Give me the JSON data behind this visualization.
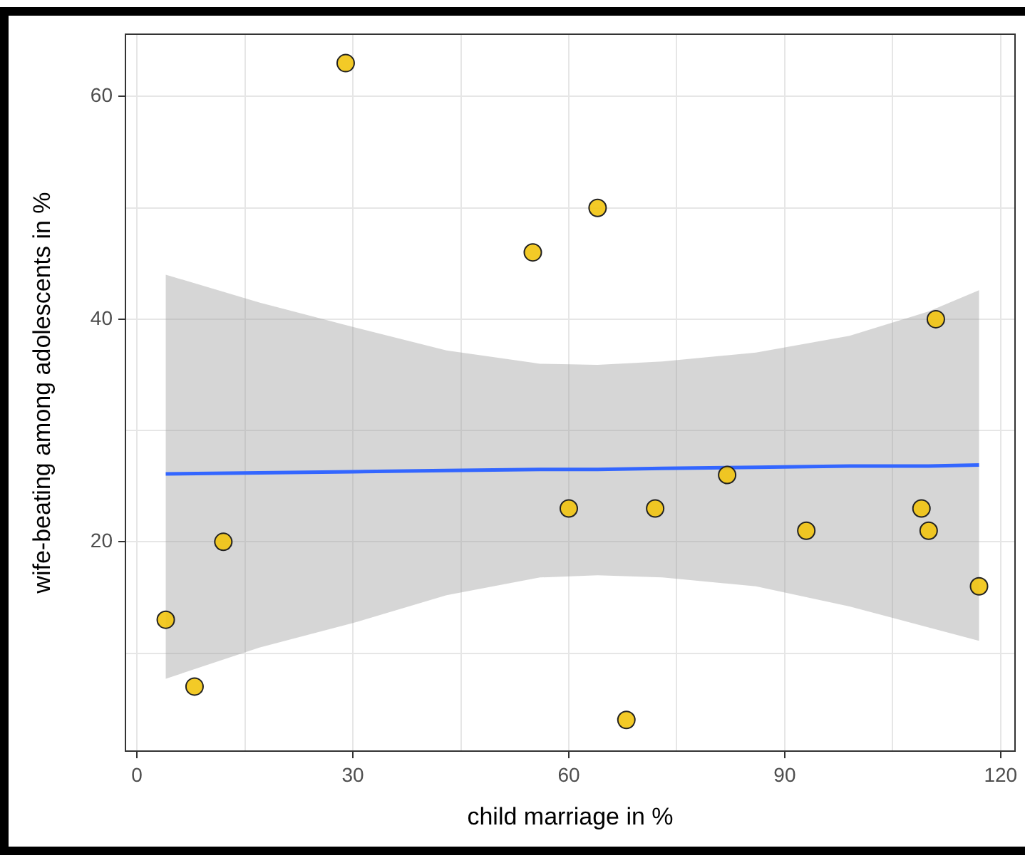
{
  "chart_data": {
    "type": "scatter",
    "xlabel": "child marriage in %",
    "ylabel": "wife-beating among adolescents in %",
    "xlim": [
      -1.6,
      122
    ],
    "ylim": [
      1.2,
      65.6
    ],
    "xticks": [
      0,
      {
        "value": 15,
        "label": null
      },
      30,
      {
        "value": 45,
        "label": null
      },
      60,
      {
        "value": 75,
        "label": null
      },
      90,
      {
        "value": 105,
        "label": null
      },
      120
    ],
    "yticks": [
      {
        "value": 10,
        "label": null
      },
      20,
      {
        "value": 30,
        "label": null
      },
      40,
      {
        "value": 50,
        "label": null
      },
      60
    ],
    "grid": true,
    "series": [
      {
        "type": "line",
        "marker": "none",
        "color": "#3366ff",
        "x": [
          4,
          17,
          30,
          43,
          56,
          64,
          73,
          86,
          99,
          110,
          117
        ],
        "values": [
          26.1,
          26.2,
          26.3,
          26.4,
          26.5,
          26.5,
          26.6,
          26.7,
          26.8,
          26.8,
          26.9
        ],
        "lower": [
          7.7,
          10.5,
          12.7,
          15.2,
          16.8,
          17,
          16.8,
          16,
          14.2,
          12.3,
          11.1
        ],
        "upper": [
          44,
          41.5,
          39.3,
          37.2,
          36,
          35.9,
          36.2,
          37,
          38.5,
          40.7,
          42.6
        ]
      },
      {
        "marker": "circle",
        "color": "#f2c40f",
        "x": [
          4,
          8,
          12,
          29,
          55,
          60,
          64,
          68,
          72,
          82,
          93,
          109,
          110,
          111,
          117
        ],
        "values": [
          13,
          7,
          20,
          63,
          46,
          23,
          50,
          4,
          23,
          26,
          21,
          23,
          21,
          40,
          16
        ]
      }
    ]
  }
}
